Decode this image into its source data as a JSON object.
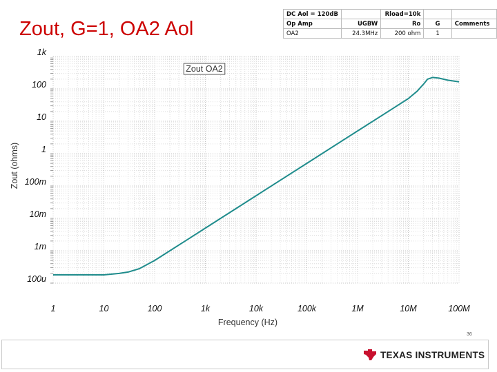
{
  "title": "Zout, G=1, OA2 Aol",
  "param_table": {
    "rows": [
      [
        "DC Aol = 120dB",
        "",
        "Rload=10k",
        "",
        ""
      ],
      [
        "Op Amp",
        "UGBW",
        "Ro",
        "G",
        "Comments"
      ],
      [
        "OA2",
        "24.3MHz",
        "200 ohm",
        "1",
        ""
      ]
    ]
  },
  "chart_data": {
    "type": "line",
    "title": "",
    "legend": "Zout OA2",
    "xlabel": "Frequency (Hz)",
    "ylabel": "Zout (ohms)",
    "x_scale": "log",
    "y_scale": "log",
    "xlim": [
      1,
      100000000
    ],
    "ylim": [
      0.0001,
      1000
    ],
    "x_ticks": [
      "1",
      "10",
      "100",
      "1k",
      "10k",
      "100k",
      "1M",
      "10M",
      "100M"
    ],
    "y_ticks": [
      "100u",
      "1m",
      "10m",
      "100m",
      "1",
      "10",
      "100",
      "1k"
    ],
    "grid": true,
    "color": "#1f8c8c",
    "series": [
      {
        "name": "Zout OA2",
        "x": [
          1,
          3,
          10,
          20,
          30,
          50,
          100,
          200,
          500,
          1000,
          10000,
          100000,
          1000000,
          5000000,
          10000000,
          15000000,
          20000000,
          24000000,
          30000000,
          40000000,
          60000000,
          100000000
        ],
        "y": [
          0.00018,
          0.00018,
          0.00018,
          0.0002,
          0.00022,
          0.00028,
          0.0005,
          0.001,
          0.0025,
          0.005,
          0.05,
          0.5,
          5,
          25,
          50,
          85,
          140,
          200,
          225,
          215,
          185,
          165
        ]
      }
    ]
  },
  "footer": {
    "page_number": "36",
    "logo_text": "TEXAS INSTRUMENTS",
    "logo_icon": "texas-instruments-logo-icon"
  }
}
